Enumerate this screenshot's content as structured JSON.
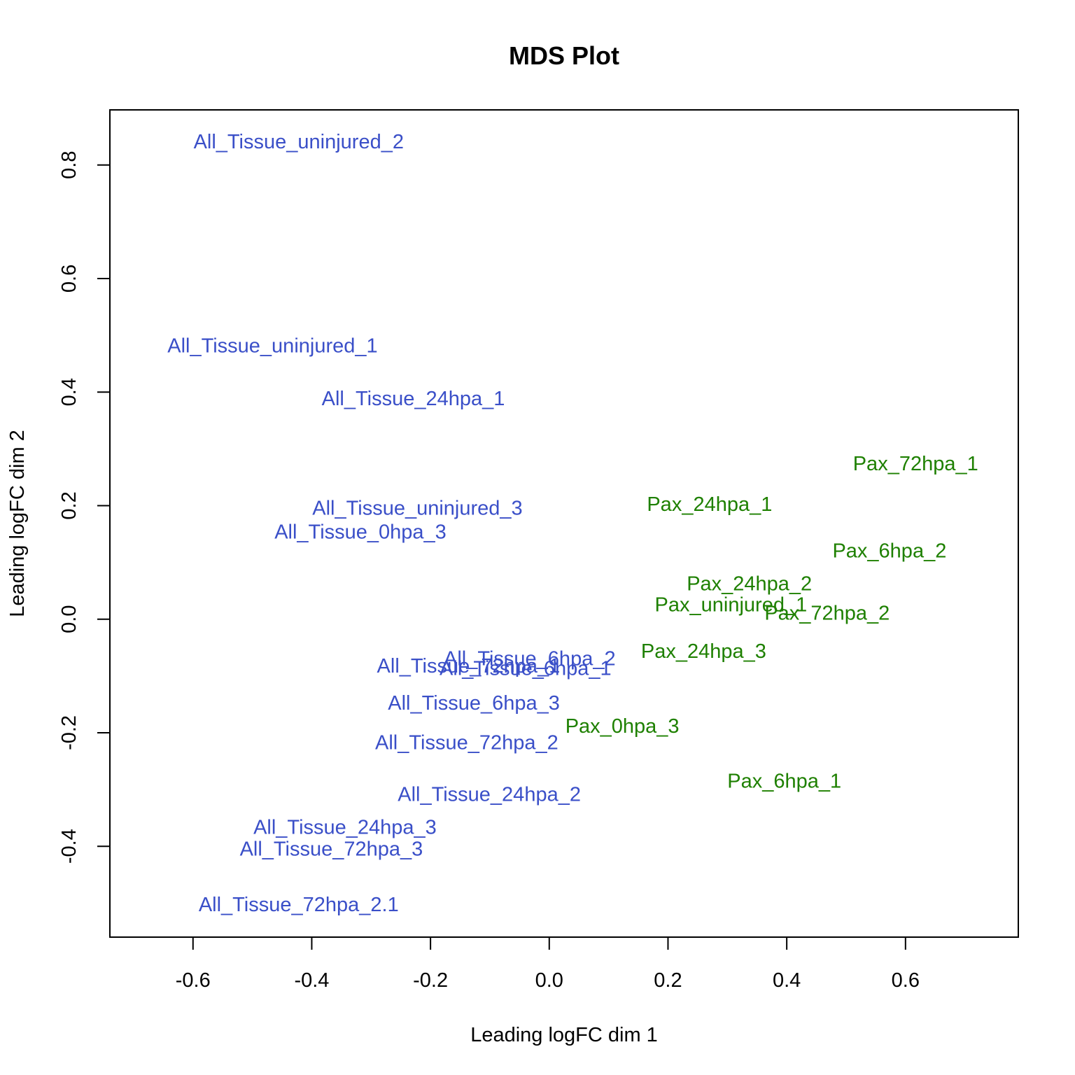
{
  "chart_data": {
    "type": "scatter",
    "title": "MDS Plot",
    "xlabel": "Leading logFC dim 1",
    "ylabel": "Leading logFC dim 2",
    "xlim": [
      -0.74,
      0.79
    ],
    "ylim": [
      -0.56,
      0.897
    ],
    "xticks": [
      -0.6,
      -0.4,
      -0.2,
      0.0,
      0.2,
      0.4,
      0.6
    ],
    "xtick_labels": [
      "-0.6",
      "-0.4",
      "-0.2",
      "0.0",
      "0.2",
      "0.4",
      "0.6"
    ],
    "yticks": [
      -0.4,
      -0.2,
      0.0,
      0.2,
      0.4,
      0.6,
      0.8
    ],
    "ytick_labels": [
      "-0.4",
      "-0.2",
      "0.0",
      "0.2",
      "0.4",
      "0.6",
      "0.8"
    ],
    "series": [
      {
        "name": "All_Tissue",
        "color": "#3a4fc8",
        "points": [
          {
            "label": "All_Tissue_uninjured_2",
            "x": -0.422,
            "y": 0.84
          },
          {
            "label": "All_Tissue_uninjured_1",
            "x": -0.466,
            "y": 0.481
          },
          {
            "label": "All_Tissue_24hpa_1",
            "x": -0.229,
            "y": 0.388
          },
          {
            "label": "All_Tissue_uninjured_3",
            "x": -0.222,
            "y": 0.195
          },
          {
            "label": "All_Tissue_0hpa_3",
            "x": -0.318,
            "y": 0.153
          },
          {
            "label": "All_Tissue_6hpa_2",
            "x": -0.033,
            "y": -0.07
          },
          {
            "label": "All_Tissue_72hpa_1",
            "x": -0.136,
            "y": -0.083
          },
          {
            "label": "All_Tissue_6hpa_1",
            "x": -0.04,
            "y": -0.087
          },
          {
            "label": "All_Tissue_6hpa_3",
            "x": -0.127,
            "y": -0.148
          },
          {
            "label": "All_Tissue_72hpa_2",
            "x": -0.139,
            "y": -0.218
          },
          {
            "label": "All_Tissue_24hpa_2",
            "x": -0.101,
            "y": -0.309
          },
          {
            "label": "All_Tissue_24hpa_3",
            "x": -0.344,
            "y": -0.367
          },
          {
            "label": "All_Tissue_72hpa_3",
            "x": -0.367,
            "y": -0.405
          },
          {
            "label": "All_Tissue_72hpa_2.1",
            "x": -0.422,
            "y": -0.503
          }
        ]
      },
      {
        "name": "Pax",
        "color": "#1e8000",
        "points": [
          {
            "label": "Pax_72hpa_1",
            "x": 0.617,
            "y": 0.273
          },
          {
            "label": "Pax_24hpa_1",
            "x": 0.27,
            "y": 0.202
          },
          {
            "label": "Pax_6hpa_2",
            "x": 0.573,
            "y": 0.12
          },
          {
            "label": "Pax_24hpa_2",
            "x": 0.337,
            "y": 0.062
          },
          {
            "label": "Pax_uninjured_1",
            "x": 0.306,
            "y": 0.025
          },
          {
            "label": "Pax_72hpa_2",
            "x": 0.468,
            "y": 0.01
          },
          {
            "label": "Pax_24hpa_3",
            "x": 0.26,
            "y": -0.057
          },
          {
            "label": "Pax_0hpa_3",
            "x": 0.123,
            "y": -0.189
          },
          {
            "label": "Pax_6hpa_1",
            "x": 0.396,
            "y": -0.286
          }
        ]
      }
    ]
  }
}
